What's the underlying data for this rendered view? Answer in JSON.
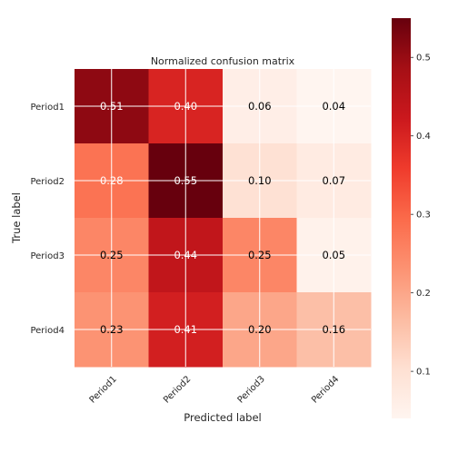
{
  "chart_data": {
    "type": "heatmap",
    "title": "Normalized confusion matrix",
    "xlabel": "Predicted label",
    "ylabel": "True label",
    "x_categories": [
      "Period1",
      "Period2",
      "Period3",
      "Period4"
    ],
    "y_categories": [
      "Period1",
      "Period2",
      "Period3",
      "Period4"
    ],
    "values": [
      [
        0.51,
        0.4,
        0.06,
        0.04
      ],
      [
        0.28,
        0.55,
        0.1,
        0.07
      ],
      [
        0.25,
        0.44,
        0.25,
        0.05
      ],
      [
        0.23,
        0.41,
        0.2,
        0.16
      ]
    ],
    "value_labels": [
      [
        "0.51",
        "0.40",
        "0.06",
        "0.04"
      ],
      [
        "0.28",
        "0.55",
        "0.10",
        "0.07"
      ],
      [
        "0.25",
        "0.44",
        "0.25",
        "0.05"
      ],
      [
        "0.23",
        "0.41",
        "0.20",
        "0.16"
      ]
    ],
    "colormap": "Reds",
    "colorbar": {
      "range": [
        0.04,
        0.55
      ],
      "ticks": [
        0.1,
        0.2,
        0.3,
        0.4,
        0.5
      ],
      "tick_labels": [
        "0.1",
        "0.2",
        "0.3",
        "0.4",
        "0.5"
      ]
    },
    "text_color_threshold": 0.275,
    "grid": true
  }
}
